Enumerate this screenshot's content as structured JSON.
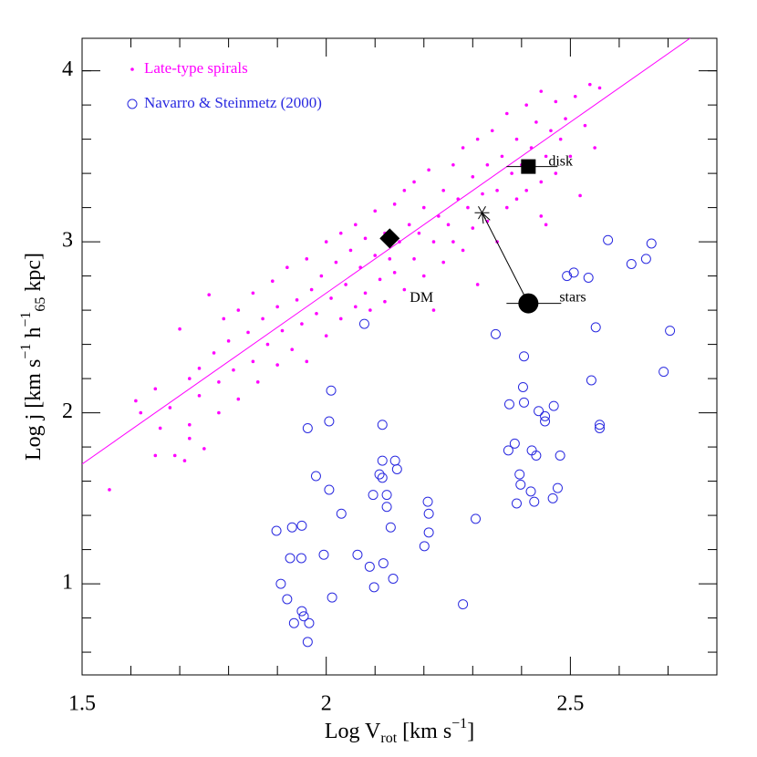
{
  "chart_data": {
    "type": "scatter",
    "xlabel_parts": [
      {
        "text": "Log V"
      },
      {
        "text": "rot",
        "pos": "sub"
      },
      {
        "text": " [km s"
      },
      {
        "text": "−1",
        "pos": "sup"
      },
      {
        "text": "]"
      }
    ],
    "ylabel_parts": [
      {
        "text": "Log j [km s"
      },
      {
        "text": "−1",
        "pos": "sup"
      },
      {
        "text": " h"
      },
      {
        "text": "−1",
        "pos": "sup"
      },
      {
        "text": "65",
        "pos": "sub"
      },
      {
        "text": " kpc]"
      }
    ],
    "xlim": [
      1.5,
      2.8
    ],
    "ylim": [
      0.467,
      4.19
    ],
    "xticks": [
      1.5,
      2,
      2.5
    ],
    "yticks": [
      1,
      2,
      3,
      4
    ],
    "xminorticks": [
      1.6,
      1.7,
      1.8,
      1.9,
      2.1,
      2.2,
      2.3,
      2.4,
      2.6,
      2.7
    ],
    "yminorticks": [
      0.6,
      0.8,
      1.2,
      1.4,
      1.6,
      1.8,
      2.2,
      2.4,
      2.6,
      2.8,
      3.2,
      3.4,
      3.6,
      3.8,
      4.0
    ],
    "legend": "upper left",
    "series": [
      {
        "name": "Late-type spirals",
        "color": "#ff00ff",
        "marker": "dot",
        "x": [
          1.556,
          1.61,
          1.62,
          1.65,
          1.65,
          1.66,
          1.68,
          1.69,
          1.7,
          1.71,
          1.72,
          1.72,
          1.72,
          1.74,
          1.74,
          1.75,
          1.76,
          1.77,
          1.78,
          1.78,
          1.79,
          1.8,
          1.81,
          1.82,
          1.82,
          1.84,
          1.85,
          1.85,
          1.86,
          1.87,
          1.88,
          1.89,
          1.9,
          1.9,
          1.91,
          1.92,
          1.93,
          1.94,
          1.95,
          1.96,
          1.96,
          1.97,
          1.98,
          1.99,
          2.0,
          2.0,
          2.01,
          2.02,
          2.03,
          2.03,
          2.04,
          2.05,
          2.06,
          2.06,
          2.07,
          2.08,
          2.08,
          2.09,
          2.1,
          2.1,
          2.11,
          2.12,
          2.12,
          2.13,
          2.14,
          2.14,
          2.15,
          2.16,
          2.16,
          2.17,
          2.18,
          2.18,
          2.19,
          2.2,
          2.2,
          2.21,
          2.22,
          2.22,
          2.23,
          2.24,
          2.24,
          2.25,
          2.26,
          2.26,
          2.27,
          2.28,
          2.28,
          2.29,
          2.3,
          2.3,
          2.31,
          2.31,
          2.32,
          2.33,
          2.33,
          2.34,
          2.35,
          2.35,
          2.36,
          2.37,
          2.37,
          2.38,
          2.39,
          2.39,
          2.4,
          2.41,
          2.41,
          2.42,
          2.43,
          2.44,
          2.44,
          2.44,
          2.45,
          2.45,
          2.46,
          2.47,
          2.47,
          2.48,
          2.49,
          2.5,
          2.51,
          2.52,
          2.53,
          2.54,
          2.55,
          2.56
        ],
        "y": [
          1.55,
          2.07,
          2.0,
          2.14,
          1.75,
          1.91,
          2.03,
          1.75,
          2.49,
          1.72,
          2.2,
          1.85,
          1.93,
          2.26,
          2.1,
          1.79,
          2.69,
          2.35,
          2.18,
          2.0,
          2.55,
          2.42,
          2.25,
          2.6,
          2.08,
          2.47,
          2.3,
          2.7,
          2.18,
          2.55,
          2.4,
          2.77,
          2.62,
          2.28,
          2.48,
          2.85,
          2.37,
          2.66,
          2.52,
          2.9,
          2.3,
          2.72,
          2.58,
          2.8,
          2.45,
          3.0,
          2.67,
          2.88,
          2.55,
          3.05,
          2.75,
          2.95,
          2.62,
          3.1,
          2.85,
          2.7,
          3.02,
          2.6,
          2.92,
          3.18,
          2.78,
          3.05,
          2.65,
          2.9,
          3.22,
          2.82,
          3.0,
          3.3,
          2.72,
          3.1,
          2.9,
          3.35,
          3.05,
          2.8,
          3.2,
          3.42,
          3.0,
          2.6,
          3.15,
          3.3,
          2.88,
          3.1,
          3.45,
          3.0,
          3.25,
          3.55,
          2.95,
          3.2,
          3.38,
          3.08,
          3.6,
          2.75,
          3.28,
          3.45,
          3.12,
          3.65,
          3.3,
          3.0,
          3.5,
          3.2,
          3.75,
          3.4,
          3.6,
          3.25,
          3.45,
          3.8,
          3.3,
          3.55,
          3.7,
          3.35,
          3.88,
          3.15,
          3.5,
          3.1,
          3.65,
          3.4,
          3.82,
          3.6,
          3.72,
          3.5,
          3.85,
          3.27,
          3.68,
          3.92,
          3.55,
          3.9
        ]
      },
      {
        "name": "Navarro & Steinmetz (2000)",
        "color": "#2a2ae0",
        "marker": "circle",
        "x": [
          2.01,
          1.962,
          2.006,
          1.979,
          2.006,
          2.031,
          2.064,
          2.096,
          2.115,
          2.115,
          2.109,
          2.115,
          2.124,
          2.124,
          2.141,
          2.145,
          2.132,
          2.137,
          2.117,
          2.089,
          2.098,
          1.995,
          2.012,
          1.898,
          1.93,
          1.95,
          1.926,
          1.949,
          1.907,
          1.92,
          1.934,
          1.95,
          1.954,
          1.965,
          1.962,
          2.208,
          2.21,
          2.21,
          2.201,
          2.28,
          2.306,
          2.347,
          2.375,
          2.405,
          2.403,
          2.405,
          2.373,
          2.386,
          2.396,
          2.398,
          2.39,
          2.421,
          2.43,
          2.419,
          2.426,
          2.435,
          2.448,
          2.448,
          2.466,
          2.479,
          2.474,
          2.464,
          2.493,
          2.507,
          2.537,
          2.552,
          2.543,
          2.56,
          2.56,
          2.577,
          2.625,
          2.655,
          2.666,
          2.704,
          2.691,
          2.078
        ],
        "y": [
          2.13,
          1.91,
          1.95,
          1.63,
          1.55,
          1.41,
          1.17,
          1.52,
          1.93,
          1.72,
          1.64,
          1.62,
          1.52,
          1.45,
          1.72,
          1.67,
          1.33,
          1.03,
          1.12,
          1.1,
          0.98,
          1.17,
          0.92,
          1.31,
          1.33,
          1.34,
          1.15,
          1.15,
          1.0,
          0.91,
          0.77,
          0.84,
          0.81,
          0.77,
          0.66,
          1.48,
          1.41,
          1.3,
          1.22,
          0.88,
          1.38,
          2.46,
          2.05,
          2.33,
          2.15,
          2.06,
          1.78,
          1.82,
          1.64,
          1.58,
          1.47,
          1.78,
          1.75,
          1.54,
          1.48,
          2.01,
          1.98,
          1.95,
          2.04,
          1.75,
          1.56,
          1.5,
          2.8,
          2.82,
          2.79,
          2.5,
          2.19,
          1.93,
          1.91,
          3.01,
          2.87,
          2.9,
          2.99,
          2.48,
          2.24,
          2.52
        ]
      }
    ],
    "fit_line": {
      "color": "#ff00ff",
      "x": [
        1.5,
        2.745
      ],
      "y": [
        1.7,
        4.19
      ]
    },
    "highlights": [
      {
        "label": "disk",
        "marker": "square",
        "x": 2.414,
        "y": 3.44
      },
      {
        "label": "DM",
        "marker": "diamond",
        "x": 2.13,
        "y": 3.02
      },
      {
        "label": "stars",
        "marker": "circle",
        "x": 2.414,
        "y": 2.64
      },
      {
        "marker": "star",
        "x": 2.319,
        "y": 3.17
      }
    ]
  }
}
